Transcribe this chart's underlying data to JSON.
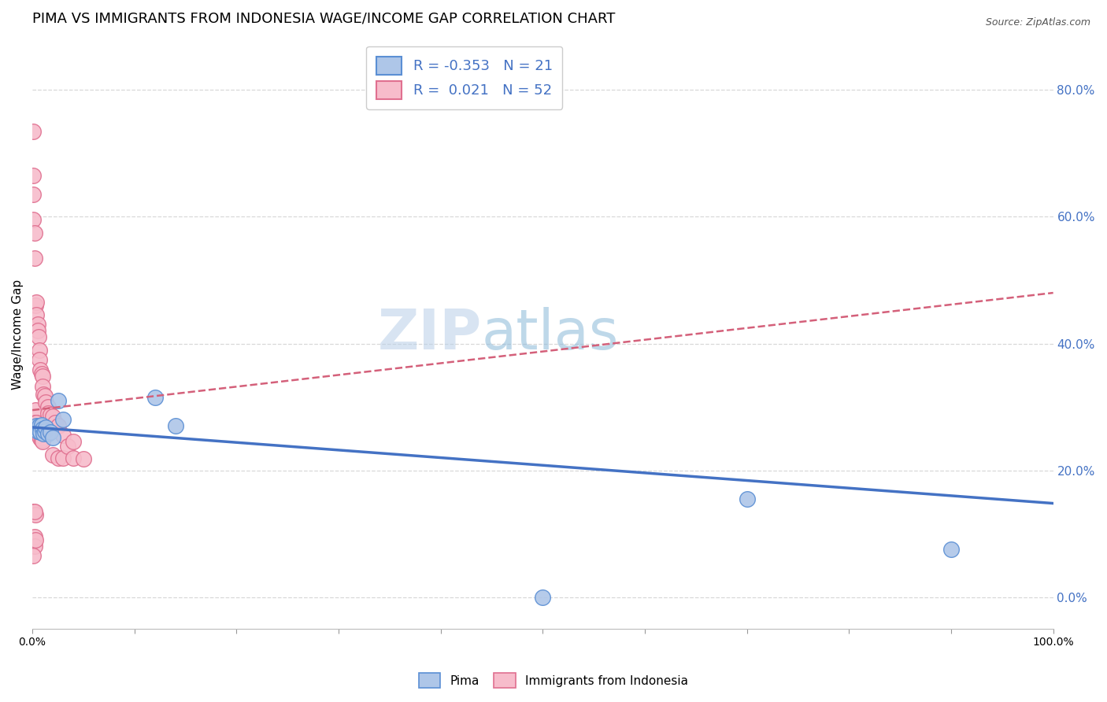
{
  "title": "PIMA VS IMMIGRANTS FROM INDONESIA WAGE/INCOME GAP CORRELATION CHART",
  "source": "Source: ZipAtlas.com",
  "ylabel": "Wage/Income Gap",
  "watermark_top": "ZIP",
  "watermark_bot": "atlas",
  "legend_pima_R": "-0.353",
  "legend_pima_N": "21",
  "legend_indo_R": "0.021",
  "legend_indo_N": "52",
  "pima_color": "#aec6e8",
  "pima_edge_color": "#5b8fd4",
  "pima_line_color": "#4472c4",
  "indo_color": "#f7bccb",
  "indo_edge_color": "#e07090",
  "indo_line_color": "#d4607a",
  "right_axis_color": "#4472c4",
  "pima_points_x": [
    0.003,
    0.004,
    0.005,
    0.006,
    0.007,
    0.008,
    0.009,
    0.01,
    0.011,
    0.012,
    0.013,
    0.015,
    0.018,
    0.02,
    0.025,
    0.03,
    0.12,
    0.14,
    0.5,
    0.7,
    0.9
  ],
  "pima_points_y": [
    0.268,
    0.27,
    0.262,
    0.265,
    0.27,
    0.26,
    0.272,
    0.265,
    0.258,
    0.262,
    0.268,
    0.258,
    0.26,
    0.252,
    0.31,
    0.28,
    0.315,
    0.27,
    0.0,
    0.155,
    0.075
  ],
  "indo_points_x": [
    0.001,
    0.001,
    0.001,
    0.001,
    0.001,
    0.002,
    0.002,
    0.002,
    0.002,
    0.003,
    0.003,
    0.003,
    0.003,
    0.004,
    0.004,
    0.004,
    0.005,
    0.005,
    0.005,
    0.006,
    0.006,
    0.006,
    0.007,
    0.007,
    0.007,
    0.008,
    0.008,
    0.009,
    0.009,
    0.01,
    0.01,
    0.01,
    0.011,
    0.012,
    0.013,
    0.015,
    0.015,
    0.018,
    0.02,
    0.02,
    0.022,
    0.025,
    0.025,
    0.03,
    0.03,
    0.035,
    0.04,
    0.04,
    0.05,
    0.001,
    0.002,
    0.003
  ],
  "indo_points_y": [
    0.735,
    0.665,
    0.635,
    0.595,
    0.135,
    0.575,
    0.535,
    0.095,
    0.08,
    0.46,
    0.295,
    0.275,
    0.13,
    0.465,
    0.445,
    0.275,
    0.43,
    0.42,
    0.26,
    0.41,
    0.27,
    0.255,
    0.39,
    0.375,
    0.265,
    0.358,
    0.25,
    0.352,
    0.248,
    0.348,
    0.332,
    0.245,
    0.32,
    0.318,
    0.308,
    0.3,
    0.29,
    0.288,
    0.285,
    0.225,
    0.275,
    0.27,
    0.22,
    0.255,
    0.22,
    0.238,
    0.245,
    0.22,
    0.218,
    0.065,
    0.135,
    0.09
  ],
  "xlim": [
    0.0,
    1.0
  ],
  "ylim": [
    -0.05,
    0.88
  ],
  "right_yticks": [
    0.0,
    0.2,
    0.4,
    0.6,
    0.8
  ],
  "right_yticklabels": [
    "0.0%",
    "20.0%",
    "40.0%",
    "60.0%",
    "80.0%"
  ],
  "pima_trend_start_y": 0.268,
  "pima_trend_end_y": 0.148,
  "indo_trend_start_y": 0.295,
  "indo_trend_end_y": 0.48,
  "grid_color": "#d8d8d8",
  "background_color": "#ffffff",
  "title_fontsize": 13,
  "axis_label_fontsize": 11,
  "tick_fontsize": 10,
  "legend_fontsize": 13,
  "source_fontsize": 9
}
